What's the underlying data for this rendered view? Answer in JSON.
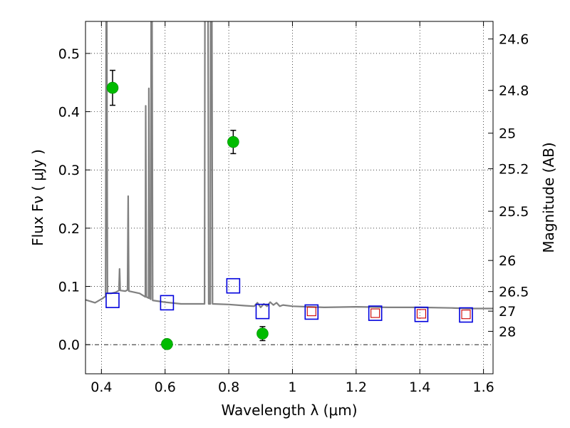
{
  "chart_data": {
    "type": "scatter",
    "xlabel": "Wavelength  λ (μm)",
    "ylabel": "Flux  Fν  ( μJy )",
    "y2label": "Magnitude (AB)",
    "xlim": [
      0.35,
      1.63
    ],
    "ylim": [
      -0.05,
      0.555
    ],
    "x_ticks": [
      0.4,
      0.6,
      0.8,
      1.0,
      1.2,
      1.4,
      1.6
    ],
    "x_tick_labels": [
      "0.4",
      "0.6",
      "0.8",
      "1",
      "1.2",
      "1.4",
      "1.6"
    ],
    "y_ticks": [
      0.0,
      0.1,
      0.2,
      0.3,
      0.4,
      0.5
    ],
    "y_tick_labels": [
      "0.0",
      "0.1",
      "0.2",
      "0.3",
      "0.4",
      "0.5"
    ],
    "mag_ticks": [
      24.6,
      24.8,
      25,
      25.2,
      25.5,
      26,
      26.5,
      27,
      28
    ],
    "mag_tick_labels": [
      "24.6",
      "24.8",
      "25",
      "25.2",
      "25.5",
      "26",
      "26.5",
      "27",
      "28"
    ],
    "grid": true,
    "series": [
      {
        "kind": "errorbar",
        "color": "#00bb00",
        "points": [
          {
            "x": 0.435,
            "y": 0.441,
            "err": 0.03
          },
          {
            "x": 0.606,
            "y": 0.001,
            "err": 0.008
          },
          {
            "x": 0.814,
            "y": 0.348,
            "err": 0.02
          },
          {
            "x": 0.906,
            "y": 0.019,
            "err": 0.012
          }
        ]
      },
      {
        "kind": "open-square",
        "color": "#0000dd",
        "points": [
          {
            "x": 0.435,
            "y": 0.076
          },
          {
            "x": 0.606,
            "y": 0.072
          },
          {
            "x": 0.814,
            "y": 0.101
          },
          {
            "x": 0.906,
            "y": 0.057
          },
          {
            "x": 1.06,
            "y": 0.056
          },
          {
            "x": 1.26,
            "y": 0.054
          },
          {
            "x": 1.405,
            "y": 0.052
          },
          {
            "x": 1.545,
            "y": 0.051
          }
        ]
      },
      {
        "kind": "open-square-small",
        "color": "#cc0000",
        "points": [
          {
            "x": 1.06,
            "y": 0.057
          },
          {
            "x": 1.26,
            "y": 0.054
          },
          {
            "x": 1.405,
            "y": 0.053
          },
          {
            "x": 1.545,
            "y": 0.052
          }
        ]
      },
      {
        "kind": "spectrum-line",
        "color": "#808080",
        "points": [
          [
            0.35,
            0.077
          ],
          [
            0.38,
            0.072
          ],
          [
            0.405,
            0.08
          ],
          [
            0.41,
            0.082
          ],
          [
            0.413,
            0.083
          ],
          [
            0.415,
            0.56
          ],
          [
            0.417,
            0.56
          ],
          [
            0.419,
            0.088
          ],
          [
            0.43,
            0.088
          ],
          [
            0.445,
            0.09
          ],
          [
            0.455,
            0.093
          ],
          [
            0.457,
            0.13
          ],
          [
            0.459,
            0.093
          ],
          [
            0.475,
            0.092
          ],
          [
            0.482,
            0.094
          ],
          [
            0.484,
            0.255
          ],
          [
            0.486,
            0.092
          ],
          [
            0.52,
            0.088
          ],
          [
            0.538,
            0.082
          ],
          [
            0.539,
            0.41
          ],
          [
            0.541,
            0.082
          ],
          [
            0.548,
            0.08
          ],
          [
            0.549,
            0.44
          ],
          [
            0.551,
            0.08
          ],
          [
            0.555,
            0.078
          ],
          [
            0.556,
            0.56
          ],
          [
            0.559,
            0.56
          ],
          [
            0.561,
            0.076
          ],
          [
            0.6,
            0.073
          ],
          [
            0.65,
            0.07
          ],
          [
            0.7,
            0.07
          ],
          [
            0.72,
            0.07
          ],
          [
            0.724,
            0.07
          ],
          [
            0.725,
            0.56
          ],
          [
            0.735,
            0.56
          ],
          [
            0.737,
            0.07
          ],
          [
            0.742,
            0.07
          ],
          [
            0.743,
            0.56
          ],
          [
            0.747,
            0.56
          ],
          [
            0.749,
            0.07
          ],
          [
            0.8,
            0.069
          ],
          [
            0.85,
            0.067
          ],
          [
            0.88,
            0.066
          ],
          [
            0.89,
            0.072
          ],
          [
            0.9,
            0.064
          ],
          [
            0.91,
            0.07
          ],
          [
            0.92,
            0.066
          ],
          [
            0.93,
            0.073
          ],
          [
            0.94,
            0.068
          ],
          [
            0.95,
            0.072
          ],
          [
            0.96,
            0.066
          ],
          [
            0.97,
            0.068
          ],
          [
            1.0,
            0.066
          ],
          [
            1.05,
            0.065
          ],
          [
            1.1,
            0.064
          ],
          [
            1.2,
            0.065
          ],
          [
            1.3,
            0.064
          ],
          [
            1.4,
            0.064
          ],
          [
            1.5,
            0.063
          ],
          [
            1.55,
            0.062
          ],
          [
            1.63,
            0.062
          ]
        ]
      }
    ]
  }
}
